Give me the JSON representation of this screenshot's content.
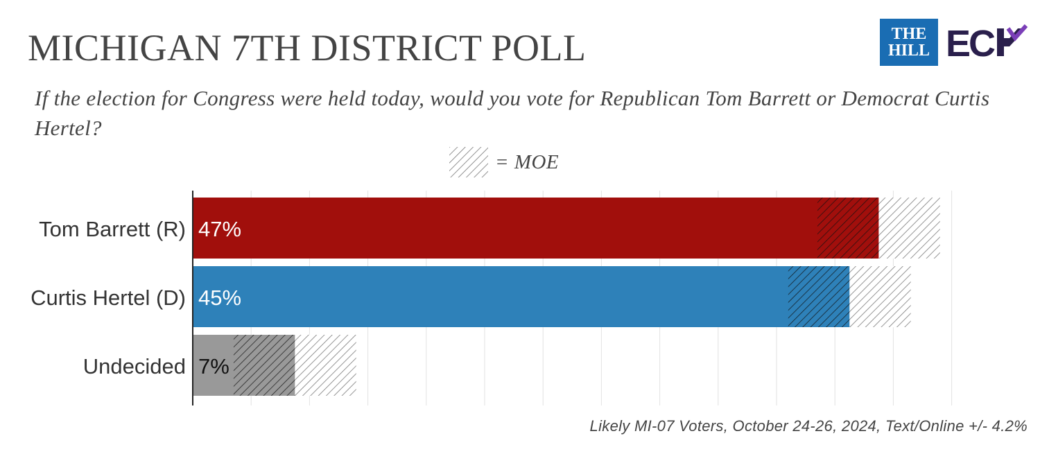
{
  "header": {
    "title": "MICHIGAN 7TH DISTRICT POLL",
    "subtitle": "If the election for Congress were held today, would you vote for Republican Tom Barrett or Democrat Curtis Hertel?"
  },
  "legend": {
    "label": "= MOE"
  },
  "logos": {
    "the_hill": "THE\nHILL",
    "ecp": "EC"
  },
  "chart_data": {
    "type": "bar",
    "orientation": "horizontal",
    "categories": [
      "Tom Barrett (R)",
      "Curtis Hertel (D)",
      "Undecided"
    ],
    "values": [
      47,
      45,
      7
    ],
    "value_labels": [
      "47%",
      "45%",
      "7%"
    ],
    "moe": 4.2,
    "colors": [
      "#a10f0c",
      "#2e81b9",
      "#999999"
    ],
    "label_colors": [
      "#ffffff",
      "#ffffff",
      "#111111"
    ],
    "xlim": [
      0,
      55
    ],
    "grid": true
  },
  "footer": {
    "note": "Likely MI-07 Voters, October 24-26, 2024, Text/Online +/- 4.2%"
  }
}
